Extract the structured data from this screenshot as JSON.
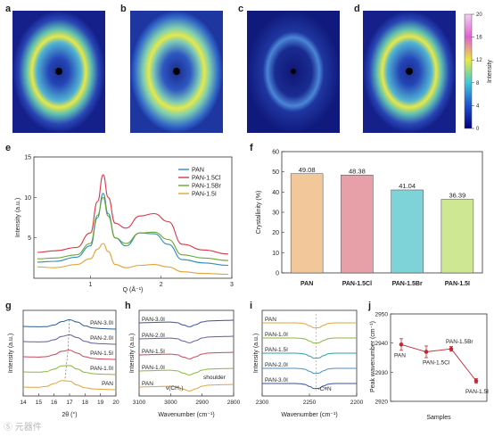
{
  "colors": {
    "PAN": "#f2c89a",
    "PAN-1.5Cl": "#e8a0a8",
    "PAN-1.5Br": "#7dd3d8",
    "PAN-1.5I": "#cde792",
    "line_PAN": "#2f8fb5",
    "line_Cl": "#d6374a",
    "line_Br": "#6aa52f",
    "line_I": "#e0a43a",
    "errbar": "#c02a35"
  },
  "panels": {
    "a": "a",
    "b": "b",
    "c": "c",
    "d": "d",
    "e": "e",
    "f": "f",
    "g": "g",
    "h": "h",
    "i": "i",
    "j": "j"
  },
  "watermark": "Ⓢ 元器件",
  "chart_data": [
    {
      "panel": "a-d",
      "type": "heatmap",
      "colorbar": {
        "label": "Intensity",
        "ticks": [
          "0",
          "4",
          "8",
          "12",
          "16",
          "20"
        ],
        "range": [
          0,
          20
        ]
      },
      "images": [
        "a",
        "b",
        "c",
        "d"
      ]
    },
    {
      "panel": "e",
      "type": "line",
      "xlabel": "Q (Å⁻¹)",
      "ylabel": "Intensity (a.u.)",
      "xlim": [
        0.2,
        3.0
      ],
      "ylim": [
        0,
        15
      ],
      "xticks": [
        "1",
        "2",
        "3"
      ],
      "yticks": [
        "5",
        "10",
        "15"
      ],
      "legend": "top-right",
      "series": [
        {
          "name": "PAN",
          "x": [
            0.25,
            0.5,
            0.8,
            1.0,
            1.1,
            1.18,
            1.25,
            1.35,
            1.5,
            1.7,
            1.9,
            2.1,
            2.3,
            2.6,
            2.95
          ],
          "y": [
            2.0,
            2.1,
            2.6,
            4.0,
            7.5,
            10.5,
            8.0,
            5.0,
            4.0,
            5.6,
            5.5,
            4.2,
            2.3,
            1.9,
            1.6
          ]
        },
        {
          "name": "PAN-1.5Cl",
          "x": [
            0.25,
            0.5,
            0.8,
            1.0,
            1.1,
            1.18,
            1.25,
            1.35,
            1.5,
            1.7,
            1.9,
            2.1,
            2.3,
            2.6,
            2.95
          ],
          "y": [
            3.2,
            3.4,
            3.8,
            5.6,
            9.5,
            12.8,
            10.0,
            6.8,
            6.2,
            7.7,
            8.0,
            7.0,
            4.2,
            3.5,
            3.0
          ]
        },
        {
          "name": "PAN-1.5Br",
          "x": [
            0.25,
            0.5,
            0.8,
            1.0,
            1.1,
            1.18,
            1.25,
            1.35,
            1.5,
            1.7,
            1.9,
            2.1,
            2.3,
            2.6,
            2.95
          ],
          "y": [
            2.4,
            2.5,
            2.9,
            4.3,
            7.8,
            10.0,
            7.7,
            5.0,
            4.3,
            5.6,
            5.7,
            4.8,
            2.9,
            2.5,
            2.2
          ]
        },
        {
          "name": "PAN-1.5I",
          "x": [
            0.25,
            0.5,
            0.8,
            1.0,
            1.1,
            1.18,
            1.25,
            1.35,
            1.5,
            1.7,
            1.9,
            2.1,
            2.3,
            2.6,
            2.95
          ],
          "y": [
            1.4,
            1.3,
            1.7,
            2.4,
            3.6,
            4.3,
            3.3,
            1.7,
            1.3,
            1.6,
            1.7,
            1.4,
            0.8,
            0.6,
            0.5
          ]
        }
      ]
    },
    {
      "panel": "f",
      "type": "bar",
      "ylabel": "Crystallinity (%)",
      "ylim": [
        0,
        60
      ],
      "yticks": [
        "0",
        "10",
        "20",
        "30",
        "40",
        "50",
        "60"
      ],
      "categories": [
        "PAN",
        "PAN-1.5Cl",
        "PAN-1.5Br",
        "PAN-1.5I"
      ],
      "values": [
        49.08,
        48.38,
        41.04,
        36.39
      ],
      "labels": [
        "49.08",
        "48.38",
        "41.04",
        "36.39"
      ]
    },
    {
      "panel": "g",
      "type": "line",
      "xlabel": "2θ (°)",
      "ylabel": "Intensity (a.u.)",
      "xlim": [
        14,
        20
      ],
      "xticks": [
        "14",
        "15",
        "16",
        "17",
        "18",
        "19",
        "20"
      ],
      "series_labels": [
        "PAN-3.0I",
        "PAN-2.0I",
        "PAN-1.5I",
        "PAN-1.0I",
        "PAN"
      ],
      "peaks": [
        17.0,
        16.95,
        16.9,
        16.8,
        16.7
      ]
    },
    {
      "panel": "h",
      "type": "line",
      "xlabel": "Wavenumber (cm⁻¹)",
      "ylabel": "Intensity (a.u.)",
      "xlim": [
        3100,
        2800
      ],
      "xticks": [
        "3100",
        "3000",
        "2900",
        "2800"
      ],
      "series_labels": [
        "PAN-3.0I",
        "PAN-2.0I",
        "PAN-1.5I",
        "PAN-1.0I",
        "PAN"
      ],
      "annotations": [
        "ν(CH₂)",
        "shoulder"
      ]
    },
    {
      "panel": "i",
      "type": "line",
      "xlabel": "Wavenumber (cm⁻¹)",
      "ylabel": "Intensity (a.u.)",
      "xlim": [
        2300,
        2200
      ],
      "xticks": [
        "2300",
        "2250",
        "2200"
      ],
      "series_labels": [
        "PAN",
        "PAN-1.0I",
        "PAN-1.5I",
        "PAN-2.0I",
        "PAN-3.0I"
      ],
      "annotations": [
        "-C≡N"
      ]
    },
    {
      "panel": "j",
      "type": "scatter",
      "xlabel": "Samples",
      "ylabel": "Peak wavenumber (cm⁻¹)",
      "ylim": [
        2920,
        2950
      ],
      "yticks": [
        "2920",
        "2930",
        "2940",
        "2950"
      ],
      "categories": [
        "PAN",
        "PAN-1.5Cl",
        "PAN-1.5Br",
        "PAN-1.5I"
      ],
      "values": [
        2939.5,
        2937,
        2938,
        2927
      ],
      "errors": [
        2,
        2,
        0.8,
        0.8
      ]
    }
  ]
}
